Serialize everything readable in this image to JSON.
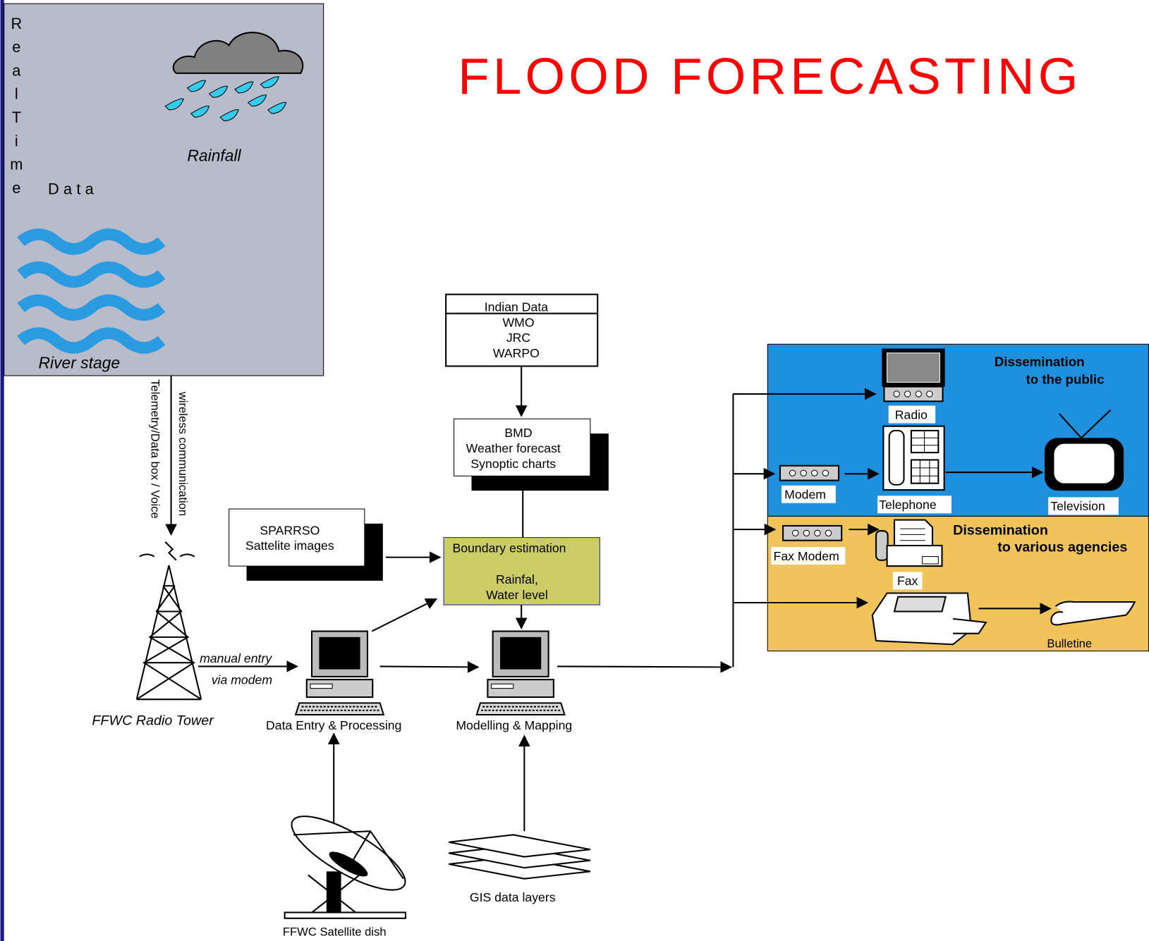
{
  "title": "FLOOD FORECASTING",
  "realtime": {
    "vertical": "RealTime",
    "data": "Data",
    "rainfall": "Rainfall",
    "river": "River stage"
  },
  "links": {
    "wireless": "wireless communication",
    "telemetry": "Telemetry/Data box / Voice",
    "manual": "manual entry",
    "modem": "via modem"
  },
  "sources": {
    "indian": [
      "Indian Data",
      "WMO",
      "JRC",
      "WARPO"
    ],
    "bmd": [
      "BMD",
      "Weather forecast",
      "Synoptic charts"
    ],
    "sparrso": [
      "SPARRSO",
      "Sattelite images"
    ],
    "boundary": [
      "Boundary estimation",
      "Rainfal,",
      "Water level"
    ]
  },
  "nodes": {
    "tower": "FFWC Radio Tower",
    "entry": "Data Entry & Processing",
    "modelling": "Modelling & Mapping",
    "dish": "FFWC Satellite dish",
    "gis": "GIS data layers"
  },
  "public": {
    "heading": [
      "Dissemination",
      "to the public"
    ],
    "radio": "Radio",
    "modem": "Modem",
    "telephone": "Telephone",
    "television": "Television"
  },
  "agencies": {
    "heading": [
      "Dissemination",
      "to various agencies"
    ],
    "faxmodem": "Fax Modem",
    "fax": "Fax",
    "bulletin": "Bulletine"
  }
}
